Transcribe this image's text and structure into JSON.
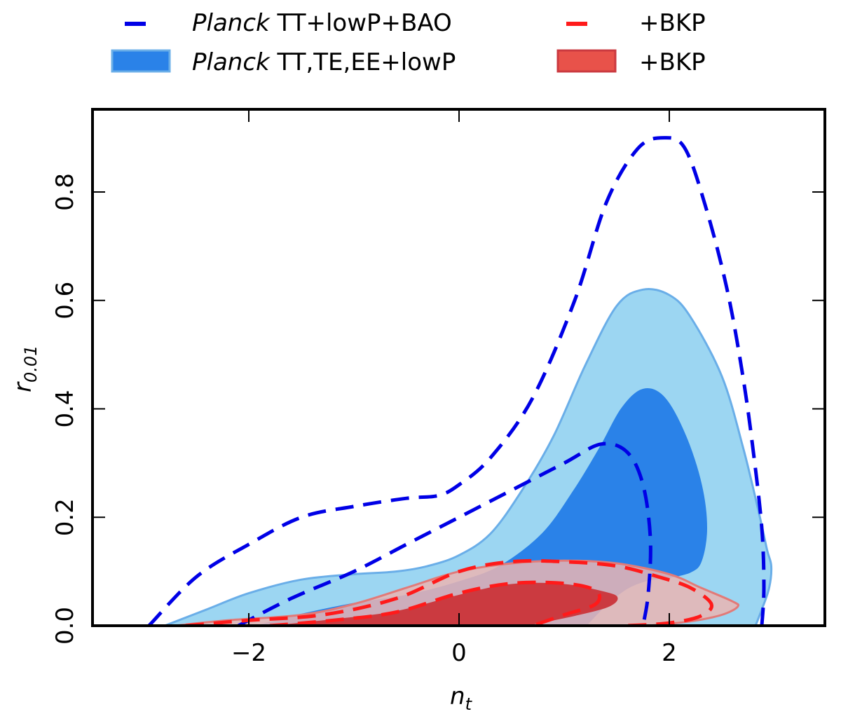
{
  "chart_data": {
    "type": "contour",
    "xlabel": "n",
    "xlabel_sub": "t",
    "ylabel": "r",
    "ylabel_sub": "0.01",
    "xlim": [
      -3.5,
      3.5
    ],
    "ylim": [
      0.0,
      0.95
    ],
    "xticks": [
      -2,
      0,
      2
    ],
    "xtick_labels": [
      "−2",
      "0",
      "2"
    ],
    "yticks": [
      0.0,
      0.2,
      0.4,
      0.6,
      0.8
    ],
    "ytick_labels": [
      "0.0",
      "0.2",
      "0.4",
      "0.6",
      "0.8"
    ],
    "legend": [
      {
        "italic": "Planck",
        "label": " TT+lowP+BAO",
        "style": "dashed",
        "color": "#0000e6"
      },
      {
        "italic": "",
        "label": "+BKP",
        "style": "dashed",
        "color": "#ff1a1a"
      },
      {
        "italic": "Planck",
        "label": " TT,TE,EE+lowP",
        "style": "filled",
        "color": "#2a82e8"
      },
      {
        "italic": "",
        "label": "+BKP",
        "style": "filled",
        "color": "#e8524a"
      }
    ],
    "series": [
      {
        "name": "Planck TT,TE,EE+lowP 95%",
        "style": "filled",
        "fill": "#9cd6f2",
        "edge": "#6aaee8",
        "points": [
          [
            -2.8,
            0.0
          ],
          [
            -2.4,
            0.03
          ],
          [
            -2.0,
            0.06
          ],
          [
            -1.5,
            0.085
          ],
          [
            -1.0,
            0.095
          ],
          [
            -0.6,
            0.1
          ],
          [
            -0.3,
            0.11
          ],
          [
            0.0,
            0.13
          ],
          [
            0.3,
            0.17
          ],
          [
            0.6,
            0.25
          ],
          [
            0.9,
            0.35
          ],
          [
            1.2,
            0.48
          ],
          [
            1.5,
            0.59
          ],
          [
            1.75,
            0.62
          ],
          [
            2.0,
            0.61
          ],
          [
            2.2,
            0.57
          ],
          [
            2.5,
            0.46
          ],
          [
            2.7,
            0.33
          ],
          [
            2.85,
            0.21
          ],
          [
            2.93,
            0.14
          ],
          [
            2.97,
            0.11
          ],
          [
            2.95,
            0.07
          ],
          [
            2.88,
            0.03
          ],
          [
            2.82,
            0.0
          ]
        ]
      },
      {
        "name": "Planck TT,TE,EE+lowP 68%",
        "style": "filled",
        "fill": "#2a82e8",
        "edge": "#2a82e8",
        "points": [
          [
            -1.9,
            0.0
          ],
          [
            -1.5,
            0.02
          ],
          [
            -1.0,
            0.04
          ],
          [
            -0.5,
            0.055
          ],
          [
            0.0,
            0.08
          ],
          [
            0.4,
            0.11
          ],
          [
            0.8,
            0.17
          ],
          [
            1.1,
            0.25
          ],
          [
            1.35,
            0.33
          ],
          [
            1.55,
            0.4
          ],
          [
            1.75,
            0.435
          ],
          [
            1.95,
            0.42
          ],
          [
            2.15,
            0.35
          ],
          [
            2.3,
            0.26
          ],
          [
            2.35,
            0.18
          ],
          [
            2.3,
            0.12
          ],
          [
            2.2,
            0.1
          ],
          [
            2.0,
            0.09
          ],
          [
            1.8,
            0.085
          ],
          [
            1.6,
            0.07
          ],
          [
            1.4,
            0.04
          ],
          [
            1.2,
            0.0
          ]
        ]
      },
      {
        "name": "+BKP 95%",
        "style": "filled",
        "fill": "#eab5b3",
        "edge": "#e27a78",
        "points": [
          [
            -2.7,
            0.0
          ],
          [
            -2.2,
            0.01
          ],
          [
            -1.5,
            0.02
          ],
          [
            -1.0,
            0.04
          ],
          [
            -0.5,
            0.07
          ],
          [
            0.0,
            0.1
          ],
          [
            0.5,
            0.115
          ],
          [
            1.0,
            0.12
          ],
          [
            1.5,
            0.115
          ],
          [
            2.0,
            0.095
          ],
          [
            2.3,
            0.07
          ],
          [
            2.6,
            0.045
          ],
          [
            2.65,
            0.035
          ],
          [
            2.5,
            0.02
          ],
          [
            2.2,
            0.008
          ],
          [
            1.8,
            0.0
          ]
        ]
      },
      {
        "name": "+BKP 68%",
        "style": "filled",
        "fill": "#cb3a40",
        "edge": "#cb3a40",
        "points": [
          [
            -1.7,
            0.0
          ],
          [
            -1.2,
            0.01
          ],
          [
            -0.6,
            0.025
          ],
          [
            0.0,
            0.055
          ],
          [
            0.5,
            0.075
          ],
          [
            1.0,
            0.075
          ],
          [
            1.4,
            0.06
          ],
          [
            1.5,
            0.05
          ],
          [
            1.4,
            0.035
          ],
          [
            1.1,
            0.02
          ],
          [
            0.6,
            0.0
          ]
        ]
      },
      {
        "name": "Planck TT+lowP+BAO 95%",
        "style": "dashed",
        "color": "#0000e6",
        "points": [
          [
            -2.95,
            0.0
          ],
          [
            -2.5,
            0.09
          ],
          [
            -2.0,
            0.15
          ],
          [
            -1.5,
            0.2
          ],
          [
            -1.0,
            0.22
          ],
          [
            -0.5,
            0.235
          ],
          [
            -0.2,
            0.24
          ],
          [
            0.0,
            0.26
          ],
          [
            0.3,
            0.31
          ],
          [
            0.7,
            0.42
          ],
          [
            1.1,
            0.6
          ],
          [
            1.4,
            0.78
          ],
          [
            1.7,
            0.88
          ],
          [
            1.95,
            0.9
          ],
          [
            2.15,
            0.88
          ],
          [
            2.35,
            0.77
          ],
          [
            2.55,
            0.62
          ],
          [
            2.7,
            0.46
          ],
          [
            2.8,
            0.32
          ],
          [
            2.88,
            0.18
          ],
          [
            2.9,
            0.07
          ],
          [
            2.88,
            0.0
          ]
        ]
      },
      {
        "name": "Planck TT+lowP+BAO 68%",
        "style": "dashed",
        "color": "#0000e6",
        "points": [
          [
            -2.1,
            0.0
          ],
          [
            -1.6,
            0.05
          ],
          [
            -1.0,
            0.1
          ],
          [
            -0.5,
            0.15
          ],
          [
            0.0,
            0.2
          ],
          [
            0.5,
            0.25
          ],
          [
            1.0,
            0.3
          ],
          [
            1.35,
            0.335
          ],
          [
            1.6,
            0.32
          ],
          [
            1.75,
            0.26
          ],
          [
            1.82,
            0.16
          ],
          [
            1.8,
            0.06
          ],
          [
            1.75,
            0.0
          ]
        ]
      },
      {
        "name": "+BKP 95% (dashed)",
        "style": "dashed",
        "color": "#ff1a1a",
        "points": [
          [
            -2.6,
            0.0
          ],
          [
            -2.0,
            0.01
          ],
          [
            -1.3,
            0.02
          ],
          [
            -0.6,
            0.05
          ],
          [
            0.0,
            0.1
          ],
          [
            0.5,
            0.118
          ],
          [
            1.0,
            0.118
          ],
          [
            1.5,
            0.11
          ],
          [
            1.9,
            0.09
          ],
          [
            2.2,
            0.07
          ],
          [
            2.4,
            0.04
          ],
          [
            2.3,
            0.018
          ],
          [
            2.0,
            0.005
          ],
          [
            1.6,
            0.0
          ]
        ]
      },
      {
        "name": "+BKP 68% (dashed)",
        "style": "dashed",
        "color": "#ff1a1a",
        "points": [
          [
            -1.8,
            0.0
          ],
          [
            -1.2,
            0.01
          ],
          [
            -0.6,
            0.025
          ],
          [
            0.0,
            0.06
          ],
          [
            0.5,
            0.078
          ],
          [
            1.0,
            0.078
          ],
          [
            1.3,
            0.065
          ],
          [
            1.3,
            0.04
          ],
          [
            1.0,
            0.02
          ],
          [
            0.7,
            0.0
          ]
        ]
      }
    ]
  }
}
